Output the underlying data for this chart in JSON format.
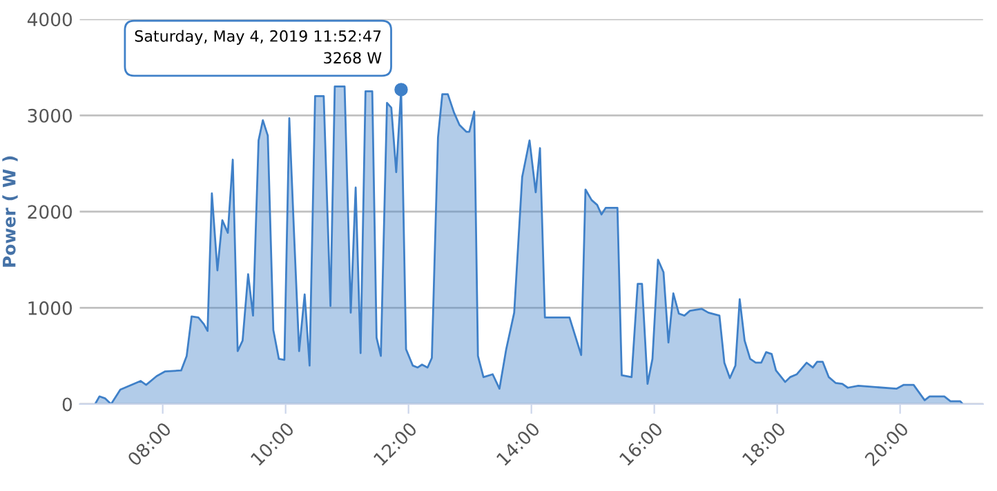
{
  "chart_data": {
    "type": "area",
    "ylabel": "Power ( W )",
    "x": [
      6.9,
      6.97,
      7.06,
      7.16,
      7.31,
      7.64,
      7.73,
      7.9,
      8.04,
      8.3,
      8.39,
      8.47,
      8.58,
      8.67,
      8.73,
      8.8,
      8.89,
      8.97,
      9.06,
      9.14,
      9.22,
      9.3,
      9.39,
      9.47,
      9.56,
      9.63,
      9.71,
      9.8,
      9.89,
      9.98,
      10.06,
      10.14,
      10.22,
      10.31,
      10.39,
      10.48,
      10.62,
      10.73,
      10.8,
      10.96,
      11.06,
      11.14,
      11.22,
      11.3,
      11.41,
      11.48,
      11.55,
      11.65,
      11.72,
      11.8,
      11.88,
      11.96,
      12.07,
      12.15,
      12.22,
      12.31,
      12.38,
      12.48,
      12.55,
      12.64,
      12.74,
      12.83,
      12.94,
      12.99,
      13.07,
      13.13,
      13.22,
      13.37,
      13.48,
      13.59,
      13.72,
      13.85,
      13.97,
      14.07,
      14.14,
      14.22,
      14.62,
      14.81,
      14.88,
      14.98,
      15.07,
      15.14,
      15.21,
      15.4,
      15.47,
      15.63,
      15.73,
      15.8,
      15.89,
      15.97,
      16.06,
      16.15,
      16.23,
      16.31,
      16.4,
      16.49,
      16.58,
      16.77,
      16.88,
      17.06,
      17.14,
      17.23,
      17.32,
      17.39,
      17.47,
      17.56,
      17.65,
      17.74,
      17.82,
      17.91,
      17.98,
      18.13,
      18.21,
      18.32,
      18.48,
      18.58,
      18.65,
      18.74,
      18.84,
      18.95,
      19.06,
      19.15,
      19.32,
      19.94,
      20.06,
      20.22,
      20.4,
      20.48,
      20.72,
      20.82,
      20.98,
      21.02
    ],
    "series": [
      {
        "color": "#3f80c8",
        "values": [
          0,
          80,
          60,
          0,
          150,
          240,
          200,
          290,
          340,
          350,
          500,
          910,
          900,
          830,
          760,
          2190,
          1390,
          1910,
          1780,
          2540,
          550,
          660,
          1350,
          920,
          2740,
          2950,
          2790,
          770,
          470,
          460,
          2970,
          1730,
          550,
          1140,
          400,
          3200,
          3200,
          1020,
          3300,
          3300,
          950,
          2250,
          530,
          3250,
          3250,
          690,
          500,
          3130,
          3080,
          2410,
          3268,
          570,
          400,
          380,
          410,
          380,
          480,
          2770,
          3220,
          3220,
          3030,
          2900,
          2830,
          2830,
          3040,
          500,
          280,
          310,
          160,
          570,
          950,
          2360,
          2740,
          2200,
          2660,
          900,
          900,
          510,
          2230,
          2120,
          2070,
          1970,
          2040,
          2040,
          300,
          280,
          1250,
          1250,
          210,
          470,
          1500,
          1370,
          640,
          1150,
          940,
          920,
          970,
          990,
          950,
          920,
          430,
          270,
          400,
          1090,
          660,
          470,
          430,
          430,
          540,
          520,
          350,
          230,
          280,
          310,
          430,
          380,
          440,
          440,
          280,
          220,
          210,
          170,
          190,
          160,
          200,
          200,
          40,
          80,
          80,
          30,
          30,
          0
        ]
      }
    ],
    "xlim": [
      6.65,
      21.35
    ],
    "xticks": [
      {
        "value": 8,
        "label": "08:00"
      },
      {
        "value": 10,
        "label": "10:00"
      },
      {
        "value": 12,
        "label": "12:00"
      },
      {
        "value": 14,
        "label": "14:00"
      },
      {
        "value": 16,
        "label": "16:00"
      },
      {
        "value": 18,
        "label": "18:00"
      },
      {
        "value": 20,
        "label": "20:00"
      }
    ],
    "ylim": [
      0,
      4000
    ],
    "yticks": [
      0,
      1000,
      2000,
      3000,
      4000
    ],
    "grid": "y",
    "annotations": [
      {
        "text": "Saturday, May 4, 2019 11:52:47\n3268 W",
        "x": 11.88,
        "y": 3268
      }
    ]
  }
}
